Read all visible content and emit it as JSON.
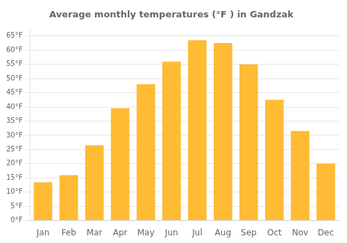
{
  "chart_data": {
    "type": "bar",
    "title": "Average monthly temperatures (°F ) in Gandzak",
    "categories": [
      "Jan",
      "Feb",
      "Mar",
      "Apr",
      "May",
      "Jun",
      "Jul",
      "Aug",
      "Sep",
      "Oct",
      "Nov",
      "Dec"
    ],
    "values": [
      13.5,
      16.0,
      26.5,
      39.5,
      48.0,
      56.0,
      63.5,
      62.5,
      55.0,
      42.5,
      31.5,
      20.0
    ],
    "color": "#FFBB33",
    "ylim": [
      0,
      68
    ],
    "yticks": [
      {
        "value": 0,
        "label": "0°F"
      },
      {
        "value": 5,
        "label": "5°F"
      },
      {
        "value": 10,
        "label": "10°F"
      },
      {
        "value": 15,
        "label": "15°F"
      },
      {
        "value": 20,
        "label": "20°F"
      },
      {
        "value": 25,
        "label": "25°F"
      },
      {
        "value": 30,
        "label": "30°F"
      },
      {
        "value": 35,
        "label": "35°F"
      },
      {
        "value": 40,
        "label": "40°F"
      },
      {
        "value": 45,
        "label": "45°F"
      },
      {
        "value": 50,
        "label": "50°F"
      },
      {
        "value": 55,
        "label": "55°F"
      },
      {
        "value": 60,
        "label": "60°F"
      },
      {
        "value": 65,
        "label": "65°F"
      }
    ],
    "grid": true
  }
}
